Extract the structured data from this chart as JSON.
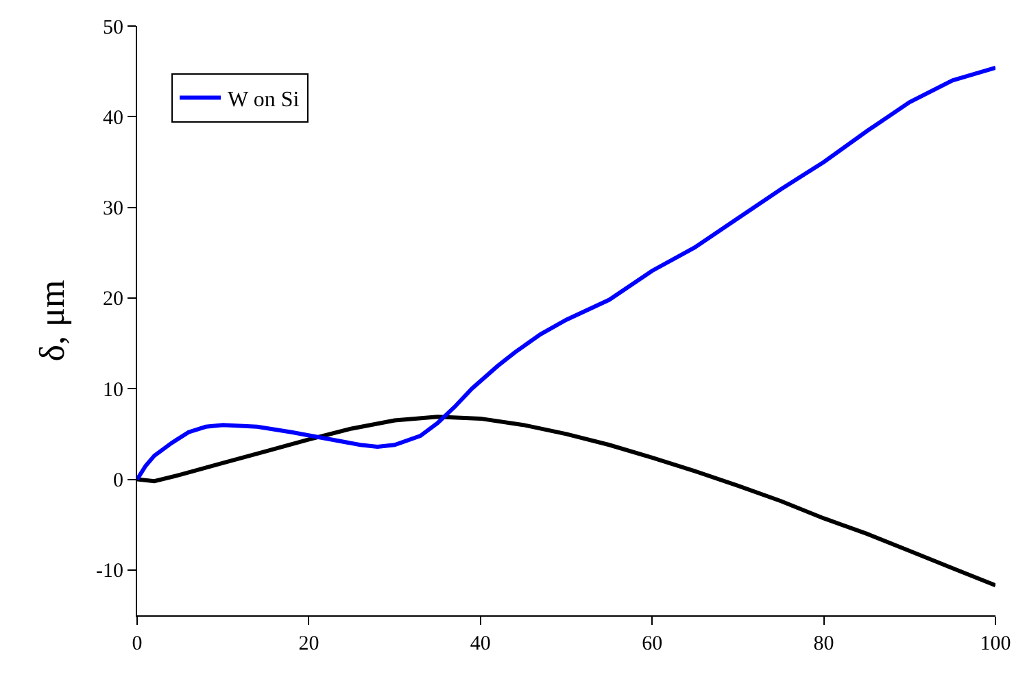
{
  "chart_data": {
    "type": "line",
    "ylabel": "δ, μm",
    "xlim": [
      0,
      100
    ],
    "xticks": [
      0,
      20,
      40,
      60,
      80,
      100
    ],
    "ylim": [
      -15,
      50
    ],
    "yticks": [
      -10,
      0,
      10,
      20,
      30,
      40,
      50
    ],
    "legend": "top left",
    "marker": "none",
    "line_style": "solid",
    "series": [
      {
        "color": "#000000",
        "x": [
          0,
          2,
          5,
          10,
          15,
          20,
          25,
          30,
          35,
          40,
          45,
          50,
          55,
          60,
          65,
          70,
          75,
          80,
          85,
          90,
          95,
          100
        ],
        "values": [
          0,
          -0.2,
          0.5,
          1.8,
          3.1,
          4.4,
          5.6,
          6.5,
          6.9,
          6.7,
          6.0,
          5.0,
          3.8,
          2.4,
          0.9,
          -0.7,
          -2.4,
          -4.3,
          -6.0,
          -7.9,
          -9.8,
          -11.7
        ]
      },
      {
        "name": "W on Si",
        "color": "#0000ff",
        "x": [
          0,
          1,
          2,
          4,
          6,
          8,
          10,
          14,
          18,
          22,
          26,
          28,
          30,
          33,
          35,
          37,
          39,
          42,
          44,
          47,
          50,
          55,
          60,
          65,
          70,
          75,
          80,
          85,
          90,
          95,
          100
        ],
        "values": [
          0,
          1.5,
          2.6,
          4.0,
          5.2,
          5.8,
          6.0,
          5.8,
          5.2,
          4.5,
          3.8,
          3.6,
          3.8,
          4.8,
          6.2,
          8.0,
          10.0,
          12.5,
          14.0,
          16.0,
          17.6,
          19.8,
          23.0,
          25.6,
          28.8,
          32.0,
          35.0,
          38.4,
          41.6,
          44.0,
          45.4
        ]
      }
    ]
  }
}
